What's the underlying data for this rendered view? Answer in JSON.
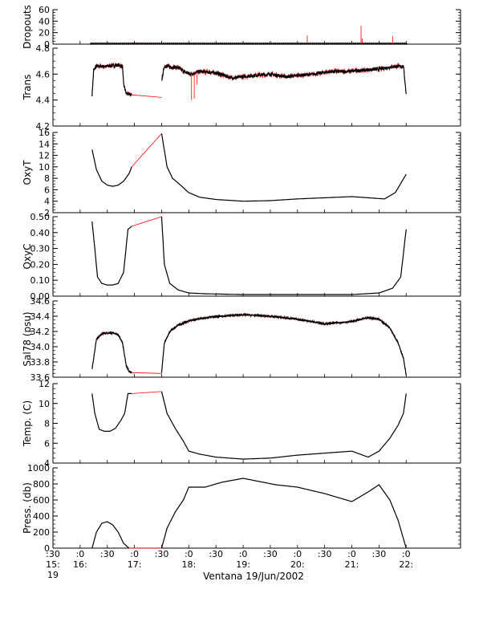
{
  "chart_data": {
    "type": "line",
    "title": "",
    "xlabel": "Ventana 19/Jun/2002",
    "x_unit": "time of day, decimal hours",
    "x_range": [
      15.5,
      23.0
    ],
    "x_ticks": [
      {
        "x": 15.5,
        "top": ":30",
        "mid": "15:",
        "bot": "19"
      },
      {
        "x": 16.0,
        "top": ":0",
        "mid": "16:",
        "bot": ""
      },
      {
        "x": 16.5,
        "top": ":30",
        "mid": "",
        "bot": ""
      },
      {
        "x": 17.0,
        "top": ":0",
        "mid": "17:",
        "bot": ""
      },
      {
        "x": 17.5,
        "top": ":30",
        "mid": "",
        "bot": ""
      },
      {
        "x": 18.0,
        "top": ":0",
        "mid": "18:",
        "bot": ""
      },
      {
        "x": 18.5,
        "top": ":30",
        "mid": "",
        "bot": ""
      },
      {
        "x": 19.0,
        "top": ":0",
        "mid": "19:",
        "bot": ""
      },
      {
        "x": 19.5,
        "top": ":30",
        "mid": "",
        "bot": ""
      },
      {
        "x": 20.0,
        "top": ":0",
        "mid": "20:",
        "bot": ""
      },
      {
        "x": 20.5,
        "top": ":30",
        "mid": "",
        "bot": ""
      },
      {
        "x": 21.0,
        "top": ":0",
        "mid": "21:",
        "bot": ""
      },
      {
        "x": 21.5,
        "top": ":30",
        "mid": "",
        "bot": ""
      },
      {
        "x": 22.0,
        "top": ":0",
        "mid": "22:",
        "bot": ""
      }
    ],
    "colors": {
      "main": "#000000",
      "raw": "#ff0000",
      "axis": "#000000"
    },
    "panels": [
      {
        "key": "dropouts",
        "ylabel": "Dropouts",
        "ylim": [
          0,
          60
        ],
        "yticks": [
          0,
          20,
          40,
          60
        ],
        "tick_labels": [
          "0",
          "20",
          "40",
          "60"
        ],
        "markers": true,
        "series": [
          {
            "x": [
              16.2,
              22.0
            ],
            "y": [
              1,
              1
            ]
          }
        ],
        "raw_series": [
          {
            "x": [
              16.95,
              17.5
            ],
            "y": [
              2,
              0
            ]
          }
        ],
        "spikes": [
          {
            "x": 20.18,
            "y": 15
          },
          {
            "x": 21.17,
            "y": 32
          },
          {
            "x": 21.19,
            "y": 10
          },
          {
            "x": 21.75,
            "y": 14
          }
        ]
      },
      {
        "key": "trans",
        "ylabel": "Trans",
        "ylim": [
          4.2,
          4.8
        ],
        "yticks": [
          4.2,
          4.4,
          4.6,
          4.8
        ],
        "tick_labels": [
          "4.2",
          "4.4",
          "4.6",
          "4.8"
        ],
        "noise": 0.012,
        "series": [
          {
            "x": [
              16.22,
              16.25,
              16.3,
              16.5,
              16.7,
              16.78,
              16.8,
              16.85,
              16.95
            ],
            "y": [
              4.44,
              4.63,
              4.66,
              4.66,
              4.67,
              4.66,
              4.52,
              4.45,
              4.44
            ]
          },
          {
            "x": [
              17.5,
              17.55,
              17.8,
              17.95,
              18.05,
              18.2,
              18.5,
              18.8,
              19.0,
              19.2,
              19.5,
              19.8,
              20.0,
              20.3,
              20.6,
              20.9,
              21.2,
              21.5,
              21.8,
              21.95,
              22.0
            ],
            "y": [
              4.55,
              4.66,
              4.65,
              4.61,
              4.6,
              4.62,
              4.61,
              4.57,
              4.58,
              4.59,
              4.6,
              4.58,
              4.59,
              4.6,
              4.62,
              4.62,
              4.63,
              4.64,
              4.66,
              4.66,
              4.45
            ]
          }
        ],
        "raw_series": [
          {
            "x": [
              16.95,
              17.5
            ],
            "y": [
              4.44,
              4.42
            ]
          }
        ],
        "spikes": [
          {
            "x": 18.05,
            "y": 4.4
          },
          {
            "x": 18.1,
            "y": 4.41
          },
          {
            "x": 18.15,
            "y": 4.52
          }
        ]
      },
      {
        "key": "oxyt",
        "ylabel": "OxyT",
        "ylim": [
          2,
          16
        ],
        "yticks": [
          2,
          4,
          6,
          8,
          10,
          12,
          14,
          16
        ],
        "tick_labels": [
          "2",
          "4",
          "6",
          "8",
          "10",
          "12",
          "14",
          "16"
        ],
        "series": [
          {
            "x": [
              16.22,
              16.3,
              16.4,
              16.5,
              16.6,
              16.7,
              16.8,
              16.9,
              16.95
            ],
            "y": [
              13,
              9.5,
              7.5,
              6.8,
              6.6,
              6.8,
              7.5,
              8.8,
              10
            ]
          },
          {
            "x": [
              17.5,
              17.6,
              17.7,
              17.8,
              18.0,
              18.2,
              18.5,
              19.0,
              19.5,
              20.0,
              20.5,
              21.0,
              21.3,
              21.6,
              21.8,
              22.0
            ],
            "y": [
              15.8,
              10,
              8,
              7.2,
              5.5,
              4.7,
              4.3,
              4.0,
              4.1,
              4.4,
              4.6,
              4.8,
              4.6,
              4.4,
              5.5,
              8.7
            ]
          }
        ],
        "raw_series": [
          {
            "x": [
              16.95,
              17.5
            ],
            "y": [
              10,
              15.8
            ]
          }
        ]
      },
      {
        "key": "oxyc",
        "ylabel": "OxyC",
        "ylim": [
          0,
          0.5
        ],
        "yticks": [
          0,
          0.1,
          0.2,
          0.3,
          0.4,
          0.5
        ],
        "tick_labels": [
          "0.00",
          "0.10",
          "0.20",
          "0.30",
          "0.40",
          "0.50"
        ],
        "series": [
          {
            "x": [
              16.22,
              16.27,
              16.32,
              16.4,
              16.5,
              16.6,
              16.7,
              16.8,
              16.88,
              16.95
            ],
            "y": [
              0.47,
              0.3,
              0.12,
              0.08,
              0.07,
              0.07,
              0.08,
              0.15,
              0.42,
              0.44
            ]
          },
          {
            "x": [
              17.5,
              17.55,
              17.65,
              17.8,
              18.0,
              18.3,
              19.0,
              20.0,
              21.0,
              21.5,
              21.75,
              21.9,
              22.0
            ],
            "y": [
              0.5,
              0.2,
              0.08,
              0.04,
              0.02,
              0.015,
              0.01,
              0.01,
              0.01,
              0.02,
              0.05,
              0.12,
              0.42
            ]
          }
        ],
        "raw_series": [
          {
            "x": [
              16.95,
              17.5
            ],
            "y": [
              0.44,
              0.5
            ]
          }
        ]
      },
      {
        "key": "sal",
        "ylabel": "Sal78 (psu)",
        "ylim": [
          33.6,
          34.6
        ],
        "yticks": [
          33.6,
          33.8,
          34.0,
          34.2,
          34.4,
          34.6
        ],
        "tick_labels": [
          "33.6",
          "33.8",
          "34.0",
          "34.2",
          "34.4",
          "34.6"
        ],
        "noise": 0.01,
        "series": [
          {
            "x": [
              16.22,
              16.25,
              16.3,
              16.4,
              16.5,
              16.6,
              16.7,
              16.78,
              16.85,
              16.9,
              16.95
            ],
            "y": [
              33.7,
              33.85,
              34.1,
              34.17,
              34.18,
              34.18,
              34.16,
              34.05,
              33.75,
              33.68,
              33.66
            ]
          },
          {
            "x": [
              17.5,
              17.55,
              17.65,
              17.8,
              18.0,
              18.3,
              18.6,
              19.0,
              19.5,
              20.0,
              20.5,
              21.0,
              21.3,
              21.5,
              21.7,
              21.85,
              21.95,
              22.0
            ],
            "y": [
              33.66,
              34.05,
              34.2,
              34.28,
              34.34,
              34.38,
              34.4,
              34.42,
              34.4,
              34.36,
              34.3,
              34.33,
              34.38,
              34.36,
              34.25,
              34.05,
              33.85,
              33.63
            ]
          }
        ],
        "raw_series": [
          {
            "x": [
              16.95,
              17.5
            ],
            "y": [
              33.66,
              33.65
            ]
          }
        ]
      },
      {
        "key": "temp",
        "ylabel": "Temp. (C)",
        "ylim": [
          4,
          12
        ],
        "yticks": [
          4,
          6,
          8,
          10,
          12
        ],
        "tick_labels": [
          "4",
          "6",
          "8",
          "10",
          "12"
        ],
        "series": [
          {
            "x": [
              16.22,
              16.27,
              16.35,
              16.45,
              16.55,
              16.65,
              16.75,
              16.82,
              16.88,
              16.95
            ],
            "y": [
              11.0,
              9.0,
              7.4,
              7.2,
              7.2,
              7.5,
              8.3,
              9.0,
              11.0,
              11.0
            ]
          },
          {
            "x": [
              17.5,
              17.6,
              17.75,
              17.9,
              18.0,
              18.2,
              18.5,
              19.0,
              19.5,
              20.0,
              20.5,
              21.0,
              21.3,
              21.5,
              21.7,
              21.85,
              21.95,
              22.0
            ],
            "y": [
              11.2,
              9.0,
              7.5,
              6.2,
              5.2,
              4.9,
              4.6,
              4.4,
              4.5,
              4.8,
              5.0,
              5.2,
              4.6,
              5.2,
              6.5,
              7.8,
              9.0,
              11.0
            ]
          }
        ],
        "raw_series": [
          {
            "x": [
              16.95,
              17.5
            ],
            "y": [
              11.0,
              11.2
            ]
          }
        ]
      },
      {
        "key": "press",
        "ylabel": "Press. (db)",
        "ylim": [
          0,
          1000
        ],
        "yticks": [
          0,
          200,
          400,
          600,
          800,
          1000
        ],
        "tick_labels": [
          "0",
          "200",
          "400",
          "600",
          "800",
          "1000"
        ],
        "series": [
          {
            "x": [
              16.22,
              16.3,
              16.4,
              16.5,
              16.6,
              16.7,
              16.8,
              16.9
            ],
            "y": [
              0,
              200,
              310,
              330,
              290,
              200,
              60,
              0
            ]
          },
          {
            "x": [
              17.5,
              17.6,
              17.75,
              17.9,
              18.0,
              18.3,
              18.6,
              19.0,
              19.3,
              19.6,
              20.0,
              20.5,
              21.0,
              21.3,
              21.5,
              21.7,
              21.85,
              22.0
            ],
            "y": [
              0,
              250,
              450,
              600,
              760,
              760,
              820,
              870,
              830,
              790,
              760,
              680,
              580,
              700,
              790,
              600,
              350,
              0
            ]
          }
        ],
        "raw_series": [
          {
            "x": [
              16.9,
              17.5
            ],
            "y": [
              0,
              0
            ]
          }
        ]
      }
    ]
  }
}
